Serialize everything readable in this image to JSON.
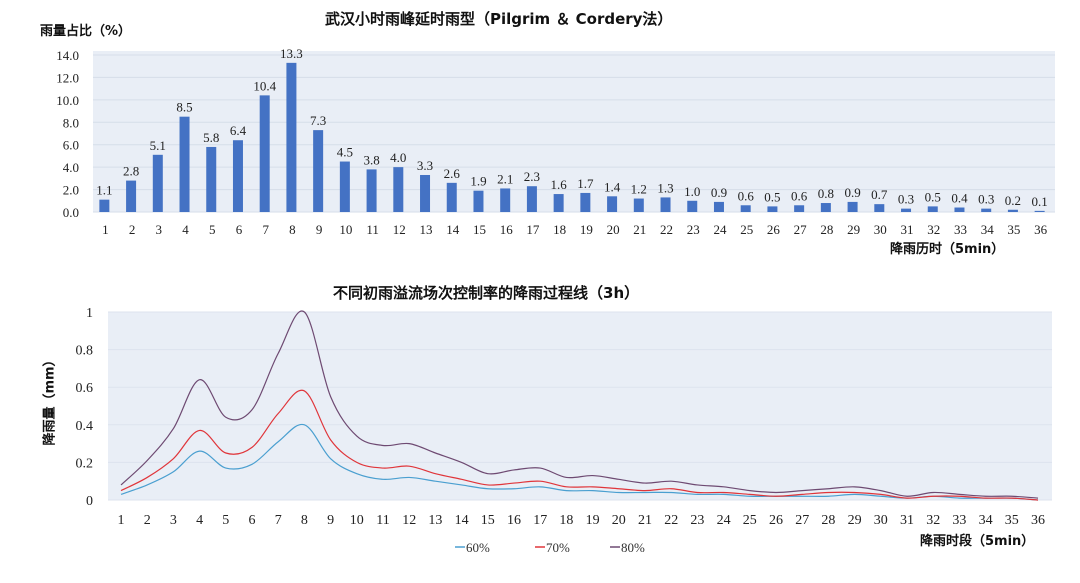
{
  "chart_data": [
    {
      "type": "bar",
      "title": "武汉小时雨峰延时雨型（Pilgrim ＆ Cordery法）",
      "ylabel": "雨量占比（%）",
      "xlabel": "降雨历时（5min）",
      "ylim": [
        0,
        14
      ],
      "yticks": [
        "0.0",
        "2.0",
        "4.0",
        "6.0",
        "8.0",
        "10.0",
        "12.0",
        "14.0"
      ],
      "categories": [
        "1",
        "2",
        "3",
        "4",
        "5",
        "6",
        "7",
        "8",
        "9",
        "10",
        "11",
        "12",
        "13",
        "14",
        "15",
        "16",
        "17",
        "18",
        "19",
        "20",
        "21",
        "22",
        "23",
        "24",
        "25",
        "26",
        "27",
        "28",
        "29",
        "30",
        "31",
        "32",
        "33",
        "34",
        "35",
        "36"
      ],
      "values": [
        1.1,
        2.8,
        5.1,
        8.5,
        5.8,
        6.4,
        10.4,
        13.3,
        7.3,
        4.5,
        3.8,
        4.0,
        3.3,
        2.6,
        1.9,
        2.1,
        2.3,
        1.6,
        1.7,
        1.4,
        1.2,
        1.3,
        1.0,
        0.9,
        0.6,
        0.5,
        0.6,
        0.8,
        0.9,
        0.7,
        0.3,
        0.5,
        0.4,
        0.3,
        0.2,
        0.1
      ],
      "bar_color": "#4472c4",
      "grid": true
    },
    {
      "type": "line",
      "title": "不同初雨溢流场次控制率的降雨过程线（3h）",
      "ylabel": "降雨量（mm）",
      "xlabel": "降雨时段（5min）",
      "ylim": [
        0,
        1
      ],
      "yticks": [
        "0",
        "0.2",
        "0.4",
        "0.6",
        "0.8",
        "1"
      ],
      "categories": [
        "1",
        "2",
        "3",
        "4",
        "5",
        "6",
        "7",
        "8",
        "9",
        "10",
        "11",
        "12",
        "13",
        "14",
        "15",
        "16",
        "17",
        "18",
        "19",
        "20",
        "21",
        "22",
        "23",
        "24",
        "25",
        "26",
        "27",
        "28",
        "29",
        "30",
        "31",
        "32",
        "33",
        "34",
        "35",
        "36"
      ],
      "legend_position": "bottom",
      "series": [
        {
          "name": "60%",
          "color": "#4a9fd0",
          "values": [
            0.03,
            0.08,
            0.15,
            0.26,
            0.17,
            0.19,
            0.31,
            0.4,
            0.22,
            0.14,
            0.11,
            0.12,
            0.1,
            0.08,
            0.06,
            0.06,
            0.07,
            0.05,
            0.05,
            0.04,
            0.04,
            0.04,
            0.03,
            0.03,
            0.02,
            0.02,
            0.02,
            0.02,
            0.03,
            0.02,
            0.01,
            0.02,
            0.01,
            0.01,
            0.01,
            0.0
          ]
        },
        {
          "name": "70%",
          "color": "#e0353a",
          "values": [
            0.05,
            0.12,
            0.22,
            0.37,
            0.25,
            0.28,
            0.46,
            0.58,
            0.32,
            0.2,
            0.17,
            0.18,
            0.14,
            0.11,
            0.08,
            0.09,
            0.1,
            0.07,
            0.07,
            0.06,
            0.05,
            0.06,
            0.04,
            0.04,
            0.03,
            0.02,
            0.03,
            0.04,
            0.04,
            0.03,
            0.01,
            0.02,
            0.02,
            0.01,
            0.01,
            0.0
          ]
        },
        {
          "name": "80%",
          "color": "#6e4a72",
          "values": [
            0.08,
            0.21,
            0.38,
            0.64,
            0.44,
            0.48,
            0.78,
            1.0,
            0.55,
            0.34,
            0.29,
            0.3,
            0.25,
            0.2,
            0.14,
            0.16,
            0.17,
            0.12,
            0.13,
            0.11,
            0.09,
            0.1,
            0.08,
            0.07,
            0.05,
            0.04,
            0.05,
            0.06,
            0.07,
            0.05,
            0.02,
            0.04,
            0.03,
            0.02,
            0.02,
            0.01
          ]
        }
      ]
    }
  ]
}
